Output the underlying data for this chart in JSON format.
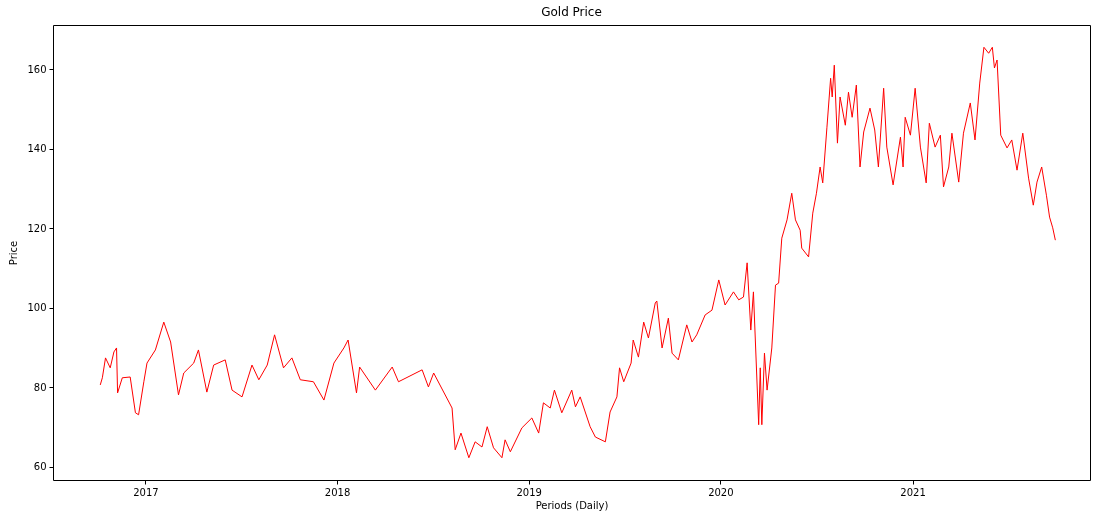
{
  "chart_data": {
    "type": "line",
    "title": "Gold Price",
    "xlabel": "Periods (Daily)",
    "ylabel": "Price",
    "color": "#ff0000",
    "xlim": [
      "2016-07-09",
      "2021-12-05"
    ],
    "ylim": [
      56.7,
      171.1
    ],
    "xticks": [
      "2017",
      "2018",
      "2019",
      "2020",
      "2021"
    ],
    "yticks": [
      60,
      80,
      100,
      120,
      140,
      160
    ],
    "x": [
      "2016-10-07",
      "2016-10-11",
      "2016-10-17",
      "2016-10-26",
      "2016-11-02",
      "2016-11-07",
      "2016-11-09",
      "2016-11-18",
      "2016-12-03",
      "2016-12-13",
      "2016-12-19",
      "2016-12-29",
      "2017-01-04",
      "2017-01-20",
      "2017-02-05",
      "2017-02-18",
      "2017-03-05",
      "2017-03-15",
      "2017-04-03",
      "2017-04-12",
      "2017-04-28",
      "2017-05-11",
      "2017-06-02",
      "2017-06-15",
      "2017-07-04",
      "2017-07-23",
      "2017-08-05",
      "2017-08-21",
      "2017-09-04",
      "2017-09-21",
      "2017-10-07",
      "2017-10-23",
      "2017-11-17",
      "2017-12-07",
      "2017-12-26",
      "2018-01-14",
      "2018-01-22",
      "2018-02-07",
      "2018-02-13",
      "2018-03-15",
      "2018-04-16",
      "2018-04-28",
      "2018-06-12",
      "2018-06-24",
      "2018-07-04",
      "2018-08-08",
      "2018-08-14",
      "2018-08-25",
      "2018-09-09",
      "2018-09-21",
      "2018-10-04",
      "2018-10-14",
      "2018-10-26",
      "2018-11-11",
      "2018-11-17",
      "2018-11-27",
      "2018-12-19",
      "2019-01-07",
      "2019-01-20",
      "2019-01-29",
      "2019-02-11",
      "2019-02-19",
      "2019-03-05",
      "2019-03-24",
      "2019-03-31",
      "2019-04-09",
      "2019-04-28",
      "2019-05-08",
      "2019-05-27",
      "2019-06-05",
      "2019-06-18",
      "2019-06-23",
      "2019-07-01",
      "2019-07-15",
      "2019-07-19",
      "2019-07-29",
      "2019-08-08",
      "2019-08-17",
      "2019-08-30",
      "2019-09-02",
      "2019-09-12",
      "2019-09-24",
      "2019-10-01",
      "2019-10-13",
      "2019-10-29",
      "2019-11-08",
      "2019-11-17",
      "2019-12-03",
      "2019-12-16",
      "2019-12-29",
      "2020-01-10",
      "2020-01-26",
      "2020-02-05",
      "2020-02-14",
      "2020-02-21",
      "2020-02-28",
      "2020-03-04",
      "2020-03-14",
      "2020-03-17",
      "2020-03-20",
      "2020-03-25",
      "2020-03-30",
      "2020-04-08",
      "2020-04-15",
      "2020-04-21",
      "2020-04-27",
      "2020-05-07",
      "2020-05-16",
      "2020-05-23",
      "2020-06-01",
      "2020-06-04",
      "2020-06-17",
      "2020-06-25",
      "2020-07-02",
      "2020-07-09",
      "2020-07-14",
      "2020-07-22",
      "2020-07-29",
      "2020-08-01",
      "2020-08-05",
      "2020-08-11",
      "2020-08-16",
      "2020-08-26",
      "2020-09-01",
      "2020-09-08",
      "2020-09-16",
      "2020-09-23",
      "2020-09-30",
      "2020-10-12",
      "2020-10-21",
      "2020-10-28",
      "2020-11-07",
      "2020-11-13",
      "2020-11-25",
      "2020-12-09",
      "2020-12-14",
      "2020-12-18",
      "2020-12-28",
      "2021-01-06",
      "2021-01-16",
      "2021-01-27",
      "2021-02-02",
      "2021-02-13",
      "2021-02-23",
      "2021-03-01",
      "2021-03-11",
      "2021-03-17",
      "2021-03-30",
      "2021-04-08",
      "2021-04-21",
      "2021-04-30",
      "2021-05-09",
      "2021-05-17",
      "2021-05-26",
      "2021-06-02",
      "2021-06-06",
      "2021-06-11",
      "2021-06-18",
      "2021-06-30",
      "2021-07-09",
      "2021-07-19",
      "2021-07-30",
      "2021-08-10",
      "2021-08-19",
      "2021-08-26",
      "2021-09-04",
      "2021-09-13",
      "2021-09-19",
      "2021-09-25",
      "2021-09-30"
    ],
    "values": [
      80.6,
      82.4,
      87.4,
      84.9,
      88.9,
      89.9,
      78.6,
      82.4,
      82.6,
      73.6,
      73.1,
      81.4,
      86.1,
      89.4,
      96.4,
      91.4,
      78.1,
      83.6,
      86.1,
      89.4,
      78.8,
      85.6,
      86.9,
      79.3,
      77.6,
      85.6,
      81.9,
      85.6,
      93.2,
      84.9,
      87.4,
      81.9,
      81.4,
      76.8,
      86.1,
      89.9,
      91.9,
      78.6,
      85.1,
      79.3,
      85.1,
      81.4,
      84.4,
      80.1,
      83.6,
      74.8,
      64.3,
      68.5,
      62.3,
      66.3,
      65.0,
      70.1,
      64.8,
      62.3,
      66.8,
      63.8,
      69.8,
      72.3,
      68.5,
      76.1,
      74.8,
      79.3,
      73.6,
      79.3,
      75.1,
      77.6,
      70.1,
      67.5,
      66.3,
      73.8,
      77.6,
      84.9,
      81.4,
      86.1,
      91.9,
      87.6,
      96.4,
      92.4,
      101.2,
      101.7,
      89.9,
      97.4,
      88.6,
      86.9,
      95.7,
      91.4,
      93.2,
      98.2,
      99.4,
      107.0,
      100.7,
      104.0,
      102.0,
      102.7,
      111.3,
      94.4,
      104.0,
      70.6,
      84.9,
      70.6,
      88.6,
      79.3,
      89.9,
      105.7,
      106.2,
      117.5,
      122.1,
      128.8,
      122.1,
      119.5,
      115.0,
      112.8,
      123.8,
      128.8,
      135.4,
      131.4,
      145.4,
      157.7,
      153.0,
      161.0,
      141.4,
      153.0,
      145.9,
      154.2,
      147.9,
      156.0,
      135.4,
      144.2,
      150.2,
      144.7,
      135.4,
      155.2,
      140.4,
      130.9,
      142.9,
      135.4,
      147.9,
      143.4,
      155.2,
      140.4,
      131.4,
      146.4,
      140.4,
      143.4,
      130.4,
      135.4,
      143.9,
      131.6,
      143.9,
      151.5,
      142.2,
      156.5,
      165.5,
      164.0,
      165.5,
      160.3,
      162.3,
      143.4,
      140.2,
      142.2,
      134.6,
      143.9,
      132.6,
      125.8,
      131.6,
      135.4,
      128.3,
      122.8,
      120.1,
      117.0
    ]
  }
}
